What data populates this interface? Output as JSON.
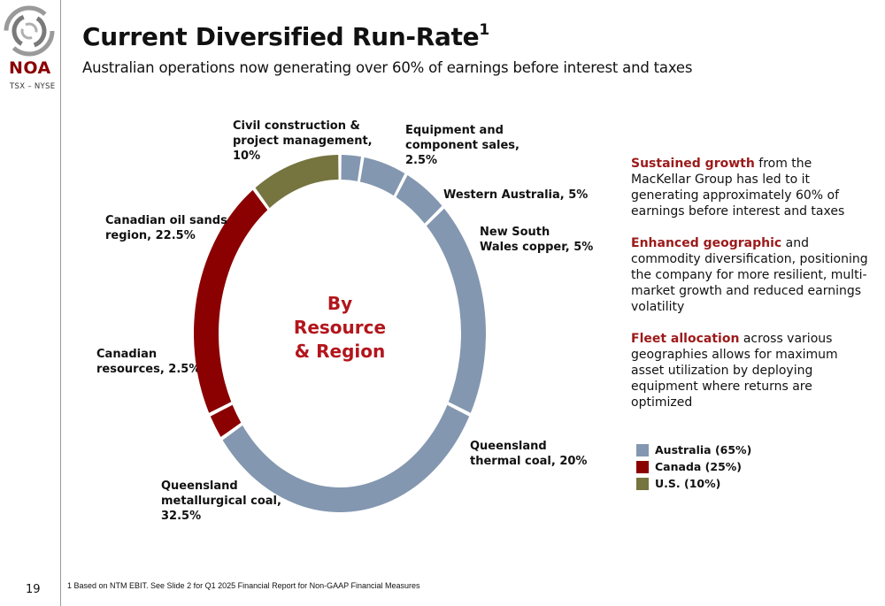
{
  "brand": {
    "name": "NOA",
    "ticker": "TSX – NYSE",
    "icon": "noa-swirl-logo"
  },
  "header": {
    "title": "Current Diversified Run-Rate",
    "title_sup": "1",
    "subtitle": "Australian operations now generating over 60% of earnings before interest and taxes"
  },
  "chart_data": {
    "type": "pie",
    "center_label": [
      "By",
      "Resource",
      "& Region"
    ],
    "slices": [
      {
        "label": [
          "Equipment and",
          "component sales,",
          "2.5%"
        ],
        "value": 2.5,
        "group": "Australia"
      },
      {
        "label": [
          "Western Australia, 5%"
        ],
        "value": 5,
        "group": "Australia"
      },
      {
        "label": [
          "New South",
          "Wales copper, 5%"
        ],
        "value": 5,
        "group": "Australia"
      },
      {
        "label": [
          "Queensland",
          "thermal coal, 20%"
        ],
        "value": 20,
        "group": "Australia"
      },
      {
        "label": [
          "Queensland",
          "metallurgical coal,",
          "32.5%"
        ],
        "value": 32.5,
        "group": "Australia"
      },
      {
        "label": [
          "Canadian",
          "resources, 2.5%"
        ],
        "value": 2.5,
        "group": "Canada"
      },
      {
        "label": [
          "Canadian oil sands",
          "region, 22.5%"
        ],
        "value": 22.5,
        "group": "Canada"
      },
      {
        "label": [
          "Civil construction &",
          "project management,",
          "10%"
        ],
        "value": 10,
        "group": "U.S."
      }
    ],
    "legend": [
      {
        "label": "Australia (65%)",
        "color": "#8497b0"
      },
      {
        "label": "Canada (25%)",
        "color": "#8b0000"
      },
      {
        "label": "U.S. (10%)",
        "color": "#76743f"
      }
    ]
  },
  "bullets": [
    {
      "em": "Sustained growth",
      "text": " from the MacKellar Group has led to it generating approximately 60% of earnings before interest and taxes"
    },
    {
      "em": "Enhanced geographic",
      "text": " and commodity diversification, positioning the company for more resilient, multi-market growth and reduced earnings volatility"
    },
    {
      "em": "Fleet allocation",
      "text": " across various geographies allows for maximum asset utilization by deploying equipment where returns are optimized"
    }
  ],
  "footer": {
    "page_number": "19",
    "footnote": "1 Based on NTM EBIT. See Slide 2 for Q1 2025 Financial Report for Non-GAAP Financial Measures"
  }
}
